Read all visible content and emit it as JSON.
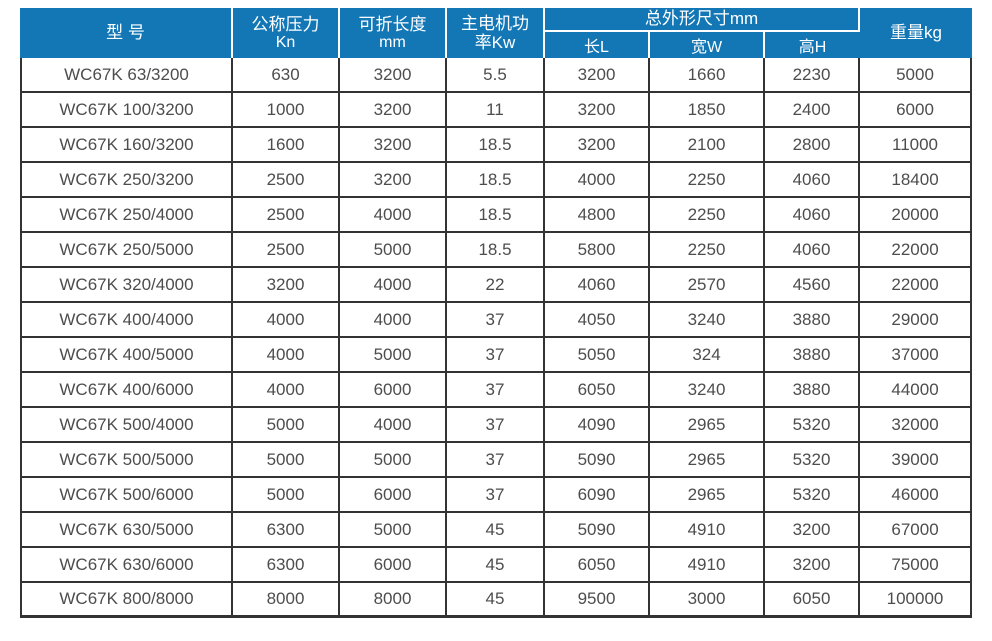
{
  "colors": {
    "header_bg": "#1377b6",
    "grid_line": "#333333",
    "cell_text": "#4d4d4d"
  },
  "table": {
    "header": {
      "model": "型 号",
      "pressure": {
        "line1": "公称压力",
        "line2": "Kn"
      },
      "length": {
        "line1": "可折长度",
        "line2": "mm"
      },
      "motor": {
        "line1": "主电机功",
        "line2": "率Kw"
      },
      "dims": "总外形尺寸mm",
      "dim_sub": {
        "l": "长L",
        "w": "宽W",
        "h": "高H"
      },
      "weight": "重量kg"
    },
    "rows": [
      [
        "WC67K 63/3200",
        "630",
        "3200",
        "5.5",
        "3200",
        "1660",
        "2230",
        "5000"
      ],
      [
        "WC67K 100/3200",
        "1000",
        "3200",
        "11",
        "3200",
        "1850",
        "2400",
        "6000"
      ],
      [
        "WC67K 160/3200",
        "1600",
        "3200",
        "18.5",
        "3200",
        "2100",
        "2800",
        "11000"
      ],
      [
        "WC67K 250/3200",
        "2500",
        "3200",
        "18.5",
        "4000",
        "2250",
        "4060",
        "18400"
      ],
      [
        "WC67K 250/4000",
        "2500",
        "4000",
        "18.5",
        "4800",
        "2250",
        "4060",
        "20000"
      ],
      [
        "WC67K 250/5000",
        "2500",
        "5000",
        "18.5",
        "5800",
        "2250",
        "4060",
        "22000"
      ],
      [
        "WC67K 320/4000",
        "3200",
        "4000",
        "22",
        "4060",
        "2570",
        "4560",
        "22000"
      ],
      [
        "WC67K 400/4000",
        "4000",
        "4000",
        "37",
        "4050",
        "3240",
        "3880",
        "29000"
      ],
      [
        "WC67K 400/5000",
        "4000",
        "5000",
        "37",
        "5050",
        "324",
        "3880",
        "37000"
      ],
      [
        "WC67K 400/6000",
        "4000",
        "6000",
        "37",
        "6050",
        "3240",
        "3880",
        "44000"
      ],
      [
        "WC67K 500/4000",
        "5000",
        "4000",
        "37",
        "4090",
        "2965",
        "5320",
        "32000"
      ],
      [
        "WC67K 500/5000",
        "5000",
        "5000",
        "37",
        "5090",
        "2965",
        "5320",
        "39000"
      ],
      [
        "WC67K 500/6000",
        "5000",
        "6000",
        "37",
        "6090",
        "2965",
        "5320",
        "46000"
      ],
      [
        "WC67K 630/5000",
        "6300",
        "5000",
        "45",
        "5090",
        "4910",
        "3200",
        "67000"
      ],
      [
        "WC67K 630/6000",
        "6300",
        "6000",
        "45",
        "6050",
        "4910",
        "3200",
        "75000"
      ],
      [
        "WC67K 800/8000",
        "8000",
        "8000",
        "45",
        "9500",
        "3000",
        "6050",
        "100000"
      ]
    ]
  }
}
